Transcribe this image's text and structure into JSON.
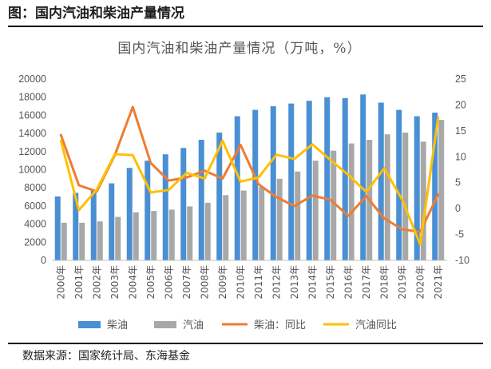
{
  "figure": {
    "title": "图：国内汽油和柴油产量情况",
    "source": "数据来源：国家统计局、东海基金"
  },
  "colors": {
    "diesel": "#4a8fd4",
    "gasoline": "#a8a8a8",
    "diesel_yoy": "#ee7c31",
    "gasoline_yoy": "#ffc000"
  },
  "chart_data": {
    "type": "bar",
    "title": "国内汽油和柴油产量情况（万吨，%）",
    "categories": [
      "2000年",
      "2001年",
      "2002年",
      "2003年",
      "2004年",
      "2005年",
      "2006年",
      "2007年",
      "2008年",
      "2009年",
      "2010年",
      "2011年",
      "2012年",
      "2013年",
      "2014年",
      "2015年",
      "2016年",
      "2017年",
      "2018年",
      "2019年",
      "2020年",
      "2021年"
    ],
    "ylim": [
      0,
      20000
    ],
    "yticks": [
      "20000",
      "18000",
      "16000",
      "14000",
      "12000",
      "10000",
      "8000",
      "6000",
      "4000",
      "2000",
      "0"
    ],
    "y2lim": [
      -10,
      25
    ],
    "y2ticks": [
      "25",
      "20",
      "15",
      "10",
      "5",
      "0",
      "-5",
      "-10"
    ],
    "series": [
      {
        "name": "柴油",
        "kind": "bar",
        "axis": "left",
        "values": [
          7050,
          7450,
          7700,
          8500,
          10200,
          11000,
          11700,
          12400,
          13300,
          14100,
          15900,
          16600,
          17000,
          17300,
          17600,
          18000,
          17900,
          18300,
          17400,
          16600,
          15900,
          16300
        ]
      },
      {
        "name": "汽油",
        "kind": "bar",
        "axis": "left",
        "values": [
          4150,
          4150,
          4300,
          4800,
          5300,
          5450,
          5600,
          5950,
          6350,
          7200,
          7700,
          8100,
          9000,
          9800,
          11000,
          12100,
          12900,
          13300,
          13900,
          14100,
          13100,
          15500
        ]
      },
      {
        "name": "柴油：同比",
        "kind": "line",
        "axis": "right",
        "values": [
          14.2,
          4.5,
          3.3,
          10.3,
          19.6,
          8.8,
          5.4,
          6.0,
          7.3,
          5.8,
          12.3,
          4.7,
          2.2,
          0.5,
          2.5,
          1.7,
          -1.4,
          2.4,
          -1.9,
          -4.0,
          -4.5,
          2.7
        ]
      },
      {
        "name": "汽油同比",
        "kind": "line",
        "axis": "right",
        "values": [
          13.1,
          -0.3,
          3.7,
          10.5,
          10.3,
          3.1,
          3.6,
          6.9,
          5.8,
          13.1,
          5.2,
          6.0,
          10.4,
          9.6,
          12.4,
          9.4,
          6.5,
          3.2,
          7.8,
          1.7,
          -6.9,
          17.6
        ]
      }
    ],
    "legend": [
      "柴油",
      "汽油",
      "柴油：同比",
      "汽油同比"
    ],
    "legend_position": "bottom"
  }
}
